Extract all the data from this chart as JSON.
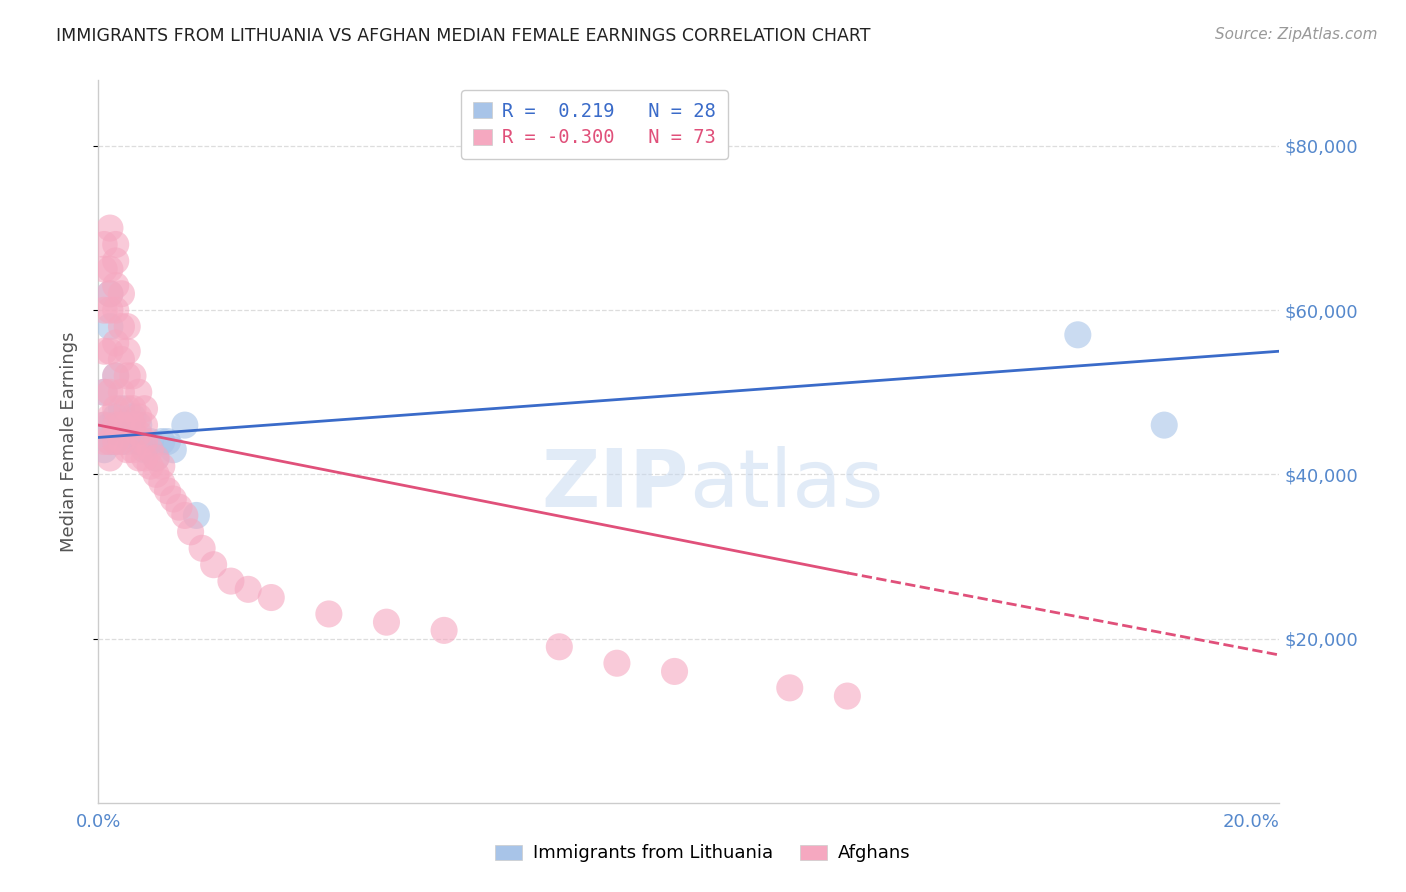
{
  "title": "IMMIGRANTS FROM LITHUANIA VS AFGHAN MEDIAN FEMALE EARNINGS CORRELATION CHART",
  "source": "Source: ZipAtlas.com",
  "ylabel": "Median Female Earnings",
  "ylim": [
    0,
    88000
  ],
  "xlim": [
    0.0,
    0.205
  ],
  "yticks": [
    20000,
    40000,
    60000,
    80000
  ],
  "ytick_labels": [
    "$20,000",
    "$40,000",
    "$60,000",
    "$80,000"
  ],
  "xticks": [
    0.0,
    0.05,
    0.1,
    0.15,
    0.2
  ],
  "xtick_labels": [
    "0.0%",
    "",
    "",
    "",
    "20.0%"
  ],
  "legend_r_blue": "R =  0.219",
  "legend_n_blue": "N = 28",
  "legend_r_pink": "R = -0.300",
  "legend_n_pink": "N = 73",
  "blue_scatter_color": "#a8c4e8",
  "pink_scatter_color": "#f5a8c0",
  "blue_line_color": "#3a6bc9",
  "pink_line_color": "#e0507a",
  "watermark_color": "#d0dff5",
  "background_color": "#ffffff",
  "grid_color": "#dddddd",
  "axis_color": "#cccccc",
  "ytick_color": "#5588cc",
  "title_color": "#222222",
  "legend_label_blue": "Immigrants from Lithuania",
  "legend_label_pink": "Afghans",
  "blue_line_x0": 0.0,
  "blue_line_y0": 44500,
  "blue_line_x1": 0.205,
  "blue_line_y1": 55000,
  "pink_line_x0": 0.0,
  "pink_line_y0": 46000,
  "pink_line_x1_solid": 0.13,
  "pink_line_y1_solid": 28000,
  "pink_line_x1_dash": 0.205,
  "pink_line_y1_dash": 18000,
  "blue_points_x": [
    0.001,
    0.001,
    0.001,
    0.002,
    0.002,
    0.002,
    0.002,
    0.003,
    0.003,
    0.003,
    0.004,
    0.004,
    0.005,
    0.005,
    0.006,
    0.006,
    0.007,
    0.007,
    0.008,
    0.009,
    0.01,
    0.011,
    0.012,
    0.013,
    0.015,
    0.017,
    0.17,
    0.185
  ],
  "blue_points_y": [
    43000,
    46000,
    50000,
    44000,
    46000,
    58000,
    62000,
    44000,
    47000,
    52000,
    44000,
    48000,
    44000,
    46000,
    45000,
    47000,
    44000,
    46000,
    43000,
    44000,
    42000,
    44000,
    44000,
    43000,
    46000,
    35000,
    57000,
    46000
  ],
  "pink_points_x": [
    0.001,
    0.001,
    0.001,
    0.001,
    0.001,
    0.001,
    0.001,
    0.002,
    0.002,
    0.002,
    0.002,
    0.002,
    0.002,
    0.002,
    0.002,
    0.002,
    0.003,
    0.003,
    0.003,
    0.003,
    0.003,
    0.003,
    0.003,
    0.003,
    0.003,
    0.004,
    0.004,
    0.004,
    0.004,
    0.004,
    0.004,
    0.005,
    0.005,
    0.005,
    0.005,
    0.005,
    0.005,
    0.006,
    0.006,
    0.006,
    0.006,
    0.007,
    0.007,
    0.007,
    0.007,
    0.008,
    0.008,
    0.008,
    0.008,
    0.009,
    0.009,
    0.01,
    0.01,
    0.011,
    0.011,
    0.012,
    0.013,
    0.014,
    0.015,
    0.016,
    0.018,
    0.02,
    0.023,
    0.026,
    0.03,
    0.04,
    0.05,
    0.06,
    0.08,
    0.09,
    0.1,
    0.12,
    0.13
  ],
  "pink_points_y": [
    44000,
    46000,
    50000,
    55000,
    60000,
    65000,
    68000,
    42000,
    44000,
    47000,
    50000,
    55000,
    60000,
    62000,
    65000,
    70000,
    44000,
    46000,
    48000,
    52000,
    56000,
    60000,
    63000,
    66000,
    68000,
    44000,
    46000,
    50000,
    54000,
    58000,
    62000,
    43000,
    46000,
    48000,
    52000,
    55000,
    58000,
    43000,
    46000,
    48000,
    52000,
    42000,
    45000,
    47000,
    50000,
    42000,
    44000,
    46000,
    48000,
    41000,
    43000,
    40000,
    42000,
    39000,
    41000,
    38000,
    37000,
    36000,
    35000,
    33000,
    31000,
    29000,
    27000,
    26000,
    25000,
    23000,
    22000,
    21000,
    19000,
    17000,
    16000,
    14000,
    13000
  ]
}
